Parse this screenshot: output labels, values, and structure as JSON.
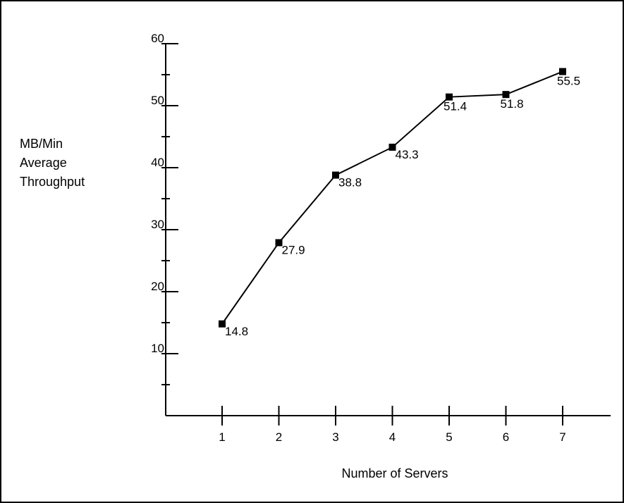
{
  "chart_data": {
    "type": "line",
    "title": "",
    "xlabel": "Number of Servers",
    "ylabel_lines": [
      "MB/Min",
      "Average",
      "Throughput"
    ],
    "x": [
      1,
      2,
      3,
      4,
      5,
      6,
      7
    ],
    "x_tick_labels": [
      "1",
      "2",
      "3",
      "4",
      "5",
      "6",
      "7"
    ],
    "y_tick_labels": [
      "10",
      "20",
      "30",
      "40",
      "50",
      "60"
    ],
    "ylim": [
      0,
      60
    ],
    "y_tick_values": [
      10,
      20,
      30,
      40,
      50,
      60
    ],
    "y_minor_step": 5,
    "grid": false,
    "legend": "none",
    "series": [
      {
        "values": [
          14.8,
          27.9,
          38.8,
          43.3,
          51.4,
          51.8,
          55.5
        ],
        "labels": [
          "14.8",
          "27.9",
          "38.8",
          "43.3",
          "51.4",
          "51.8",
          "55.5"
        ],
        "color": "#000000",
        "marker": "square"
      }
    ]
  }
}
